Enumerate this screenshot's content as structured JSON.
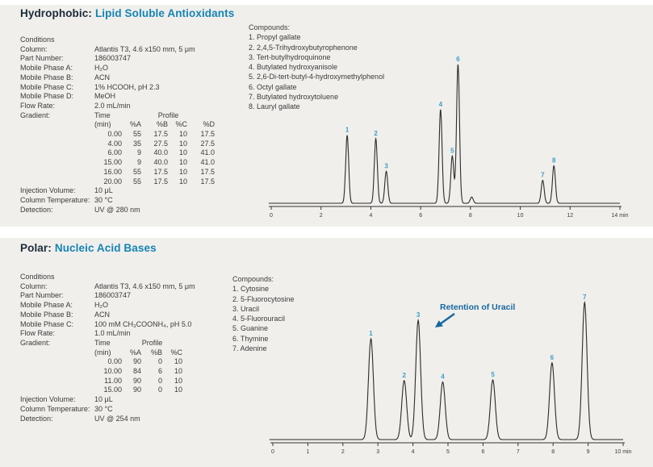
{
  "palette": {
    "page_bg": "#ffffff",
    "section_bg": "#f0efec",
    "title_dark": "#1c2b39",
    "title_blue": "#1584b5",
    "body_text": "#3b3b3b",
    "trace": "#2b2b2b",
    "peak_label_blue": "#3e9dc4",
    "annotation_blue": "#16689e"
  },
  "sections": [
    {
      "title_prefix": "Hydrophobic:",
      "title_main": "Lipid Soluble Antioxidants",
      "conditions_heading": "Conditions",
      "conditions": [
        {
          "label": "Column:",
          "value": "Atlantis T3, 4.6 x150 mm, 5 μm"
        },
        {
          "label": "Part Number:",
          "value": "186003747"
        },
        {
          "label": "Mobile Phase A:",
          "value": "H₂O"
        },
        {
          "label": "Mobile Phase B:",
          "value": "ACN"
        },
        {
          "label": "Mobile Phase C:",
          "value": "1% HCOOH, pH 2.3"
        },
        {
          "label": "Mobile Phase D:",
          "value": "MeOH"
        },
        {
          "label": "Flow Rate:",
          "value": "2.0 mL/min"
        }
      ],
      "gradient": {
        "label": "Gradient:",
        "time_header": "Time",
        "profile_header": "Profile",
        "columns": [
          "(min)",
          "%A",
          "%B",
          "%C",
          "%D"
        ],
        "rows": [
          [
            "0.00",
            "55",
            "17.5",
            "10",
            "17.5"
          ],
          [
            "4.00",
            "35",
            "27.5",
            "10",
            "27.5"
          ],
          [
            "6.00",
            "9",
            "40.0",
            "10",
            "41.0"
          ],
          [
            "15.00",
            "9",
            "40.0",
            "10",
            "41.0"
          ],
          [
            "16.00",
            "55",
            "17.5",
            "10",
            "17.5"
          ],
          [
            "20.00",
            "55",
            "17.5",
            "10",
            "17.5"
          ]
        ]
      },
      "post_conditions": [
        {
          "label": "Injection Volume:",
          "value": "10 μL"
        },
        {
          "label": "Column Temperature:",
          "value": "30 °C"
        },
        {
          "label": "Detection:",
          "value": "UV @ 280 nm"
        }
      ],
      "compounds_heading": "Compounds:",
      "compounds": [
        "Propyl gallate",
        "2,4,5-Trihydroxybutyrophenone",
        "Tert-butylhydroquinone",
        "Butylated hydroxyanisole",
        "2,6-Di-tert-butyl-4-hydroxymethylphenol",
        "Octyl gallate",
        "Butylated hydroxytoluene",
        "Lauryl gallate"
      ]
    },
    {
      "title_prefix": "Polar:",
      "title_main": "Nucleic Acid Bases",
      "conditions_heading": "Conditions",
      "conditions": [
        {
          "label": "Column:",
          "value": "Atlantis T3, 4.6 x150 mm, 5 μm"
        },
        {
          "label": "Part Number:",
          "value": "186003747"
        },
        {
          "label": "Mobile Phase A:",
          "value": "H₂O"
        },
        {
          "label": "Mobile Phase B:",
          "value": "ACN"
        },
        {
          "label": "Mobile Phase C:",
          "value": "100 mM CH₃COONH₄, pH 5.0"
        },
        {
          "label": "Flow Rate:",
          "value": "1.0 mL/min"
        }
      ],
      "gradient": {
        "label": "Gradient:",
        "time_header": "Time",
        "profile_header": "Profile",
        "columns": [
          "(min)",
          "%A",
          "%B",
          "%C"
        ],
        "rows": [
          [
            "0.00",
            "90",
            "0",
            "10"
          ],
          [
            "10.00",
            "84",
            "6",
            "10"
          ],
          [
            "11.00",
            "90",
            "0",
            "10"
          ],
          [
            "15.00",
            "90",
            "0",
            "10"
          ]
        ]
      },
      "post_conditions": [
        {
          "label": "Injection Volume:",
          "value": "10 μL"
        },
        {
          "label": "Column Temperature:",
          "value": "30 °C"
        },
        {
          "label": "Detection:",
          "value": "UV @ 254 nm"
        }
      ],
      "compounds_heading": "Compounds:",
      "compounds": [
        "Cytosine",
        "5-Fluorocytosine",
        "Uracil",
        "5-Fluorouracil",
        "Guanine",
        "Thymine",
        "Adenine"
      ]
    }
  ],
  "chart_data": [
    {
      "type": "line",
      "kind": "chromatogram",
      "title": "Hydrophobic: Lipid Soluble Antioxidants",
      "xlabel": "min",
      "x_axis": {
        "min": 0,
        "max": 14,
        "tick_interval": 2,
        "unit": "min"
      },
      "y_axis": {
        "shown": false,
        "note": "relative detector response, no scale shown"
      },
      "peak_sigma_min": 0.06,
      "peaks": [
        {
          "label": "1",
          "rt_min": 3.05,
          "height_rel": 0.49
        },
        {
          "label": "2",
          "rt_min": 4.2,
          "height_rel": 0.465
        },
        {
          "label": "3",
          "rt_min": 4.62,
          "height_rel": 0.23
        },
        {
          "label": "4",
          "rt_min": 6.8,
          "height_rel": 0.675
        },
        {
          "label": "5",
          "rt_min": 7.27,
          "height_rel": 0.34
        },
        {
          "label": "6",
          "rt_min": 7.5,
          "height_rel": 1.0
        },
        {
          "label": "",
          "rt_min": 8.05,
          "height_rel": 0.045
        },
        {
          "label": "7",
          "rt_min": 10.9,
          "height_rel": 0.165
        },
        {
          "label": "8",
          "rt_min": 11.35,
          "height_rel": 0.27
        }
      ]
    },
    {
      "type": "line",
      "kind": "chromatogram",
      "title": "Polar: Nucleic Acid Bases",
      "xlabel": "min",
      "x_axis": {
        "min": 0,
        "max": 10,
        "tick_interval": 1,
        "unit": "min"
      },
      "y_axis": {
        "shown": false,
        "note": "relative detector response, no scale shown"
      },
      "peak_sigma_min": 0.07,
      "peaks": [
        {
          "label": "1",
          "rt_min": 2.8,
          "height_rel": 0.735
        },
        {
          "label": "2",
          "rt_min": 3.75,
          "height_rel": 0.43
        },
        {
          "label": "3",
          "rt_min": 4.15,
          "height_rel": 0.87
        },
        {
          "label": "4",
          "rt_min": 4.85,
          "height_rel": 0.42
        },
        {
          "label": "5",
          "rt_min": 6.28,
          "height_rel": 0.435
        },
        {
          "label": "6",
          "rt_min": 7.97,
          "height_rel": 0.56
        },
        {
          "label": "7",
          "rt_min": 8.9,
          "height_rel": 1.0
        }
      ],
      "annotation": {
        "text": "Retention of Uracil",
        "points_to_peak": "3"
      }
    }
  ]
}
